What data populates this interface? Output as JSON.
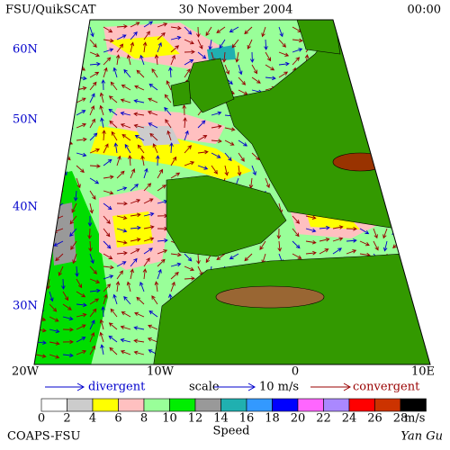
{
  "header": {
    "title": "FSU/QuikSCAT",
    "date": "30 November 2004",
    "time": "00:00"
  },
  "map": {
    "lat_labels": [
      "60N",
      "50N",
      "40N",
      "30N"
    ],
    "lon_labels": [
      "20W",
      "10W",
      "0",
      "10E"
    ]
  },
  "legend": {
    "divergent": "divergent",
    "scale": "scale",
    "scale_value": "10 m/s",
    "convergent": "convergent"
  },
  "colorbar": {
    "labels": [
      "0",
      "2",
      "4",
      "6",
      "8",
      "10",
      "12",
      "14",
      "16",
      "18",
      "20",
      "22",
      "24",
      "26",
      "28"
    ],
    "unit": "m/s",
    "title": "Speed"
  },
  "footer": {
    "left": "COAPS-FSU",
    "right": "Yan Gu"
  }
}
